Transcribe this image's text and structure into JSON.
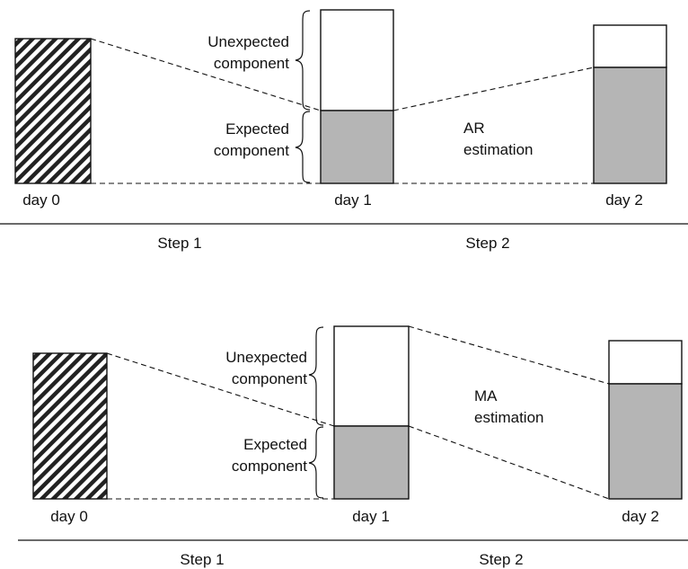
{
  "colors": {
    "expected_fill": "#b5b5b5",
    "unexpected_fill": "#ffffff",
    "hatch_stripe": "#222222",
    "line": "#111111"
  },
  "panels": [
    {
      "id": "ar",
      "labels": {
        "unexpected": [
          "Unexpected",
          "component"
        ],
        "expected": [
          "Expected",
          "component"
        ],
        "estimation": [
          "AR",
          "estimation"
        ],
        "day0": "day 0",
        "day1": "day 1",
        "day2": "day 2",
        "step1": "Step 1",
        "step2": "Step 2"
      }
    },
    {
      "id": "ma",
      "labels": {
        "unexpected": [
          "Unexpected",
          "component"
        ],
        "expected": [
          "Expected",
          "component"
        ],
        "estimation": [
          "MA",
          "estimation"
        ],
        "day0": "day 0",
        "day1": "day 1",
        "day2": "day 2",
        "step1": "Step 1",
        "step2": "Step 2"
      }
    }
  ]
}
